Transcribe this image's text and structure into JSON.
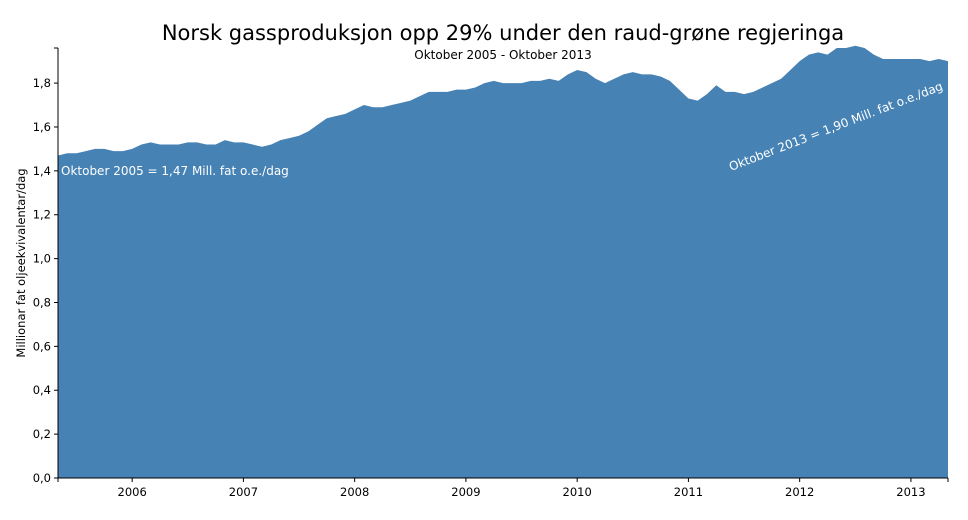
{
  "chart_data": {
    "type": "area",
    "title": "Norsk gassproduksjon opp 29% under den raud-grøne regjeringa",
    "subtitle": "Oktober 2005 - Oktober 2013",
    "xlabel": "",
    "ylabel": "Millionar fat oljeekvivalentar/dag",
    "xlim": [
      "2005-10",
      "2013-10"
    ],
    "ylim": [
      0,
      1.96
    ],
    "x_ticks": [
      "2006",
      "2007",
      "2008",
      "2009",
      "2010",
      "2011",
      "2012",
      "2013"
    ],
    "y_ticks": [
      "0,0",
      "0,2",
      "0,4",
      "0,6",
      "0,8",
      "1,0",
      "1,2",
      "1,4",
      "1,6",
      "1,8"
    ],
    "color": "#4682b4",
    "grid": false,
    "legend": "none",
    "series": [
      {
        "x": [
          "2005-10",
          "2005-11",
          "2005-12",
          "2006-01",
          "2006-02",
          "2006-03",
          "2006-04",
          "2006-05",
          "2006-06",
          "2006-07",
          "2006-08",
          "2006-09",
          "2006-10",
          "2006-11",
          "2006-12",
          "2007-01",
          "2007-02",
          "2007-03",
          "2007-04",
          "2007-05",
          "2007-06",
          "2007-07",
          "2007-08",
          "2007-09",
          "2007-10",
          "2007-11",
          "2007-12",
          "2008-01",
          "2008-02",
          "2008-03",
          "2008-04",
          "2008-05",
          "2008-06",
          "2008-07",
          "2008-08",
          "2008-09",
          "2008-10",
          "2008-11",
          "2008-12",
          "2009-01",
          "2009-02",
          "2009-03",
          "2009-04",
          "2009-05",
          "2009-06",
          "2009-07",
          "2009-08",
          "2009-09",
          "2009-10",
          "2009-11",
          "2009-12",
          "2010-01",
          "2010-02",
          "2010-03",
          "2010-04",
          "2010-05",
          "2010-06",
          "2010-07",
          "2010-08",
          "2010-09",
          "2010-10",
          "2010-11",
          "2010-12",
          "2011-01",
          "2011-02",
          "2011-03",
          "2011-04",
          "2011-05",
          "2011-06",
          "2011-07",
          "2011-08",
          "2011-09",
          "2011-10",
          "2011-11",
          "2011-12",
          "2012-01",
          "2012-02",
          "2012-03",
          "2012-04",
          "2012-05",
          "2012-06",
          "2012-07",
          "2012-08",
          "2012-09",
          "2012-10",
          "2012-11",
          "2012-12",
          "2013-01",
          "2013-02",
          "2013-03",
          "2013-04",
          "2013-05",
          "2013-06",
          "2013-07",
          "2013-08",
          "2013-09",
          "2013-10"
        ],
        "values": [
          1.47,
          1.48,
          1.48,
          1.49,
          1.5,
          1.5,
          1.49,
          1.49,
          1.5,
          1.52,
          1.53,
          1.52,
          1.52,
          1.52,
          1.53,
          1.53,
          1.52,
          1.52,
          1.54,
          1.53,
          1.53,
          1.52,
          1.51,
          1.52,
          1.54,
          1.55,
          1.56,
          1.58,
          1.61,
          1.64,
          1.65,
          1.66,
          1.68,
          1.7,
          1.69,
          1.69,
          1.7,
          1.71,
          1.72,
          1.74,
          1.76,
          1.76,
          1.76,
          1.77,
          1.77,
          1.78,
          1.8,
          1.81,
          1.8,
          1.8,
          1.8,
          1.81,
          1.81,
          1.82,
          1.81,
          1.84,
          1.86,
          1.85,
          1.82,
          1.8,
          1.82,
          1.84,
          1.85,
          1.84,
          1.84,
          1.83,
          1.81,
          1.77,
          1.73,
          1.72,
          1.75,
          1.79,
          1.76,
          1.76,
          1.75,
          1.76,
          1.78,
          1.8,
          1.82,
          1.86,
          1.9,
          1.93,
          1.94,
          1.93,
          1.96,
          1.96,
          1.97,
          1.96,
          1.93,
          1.91,
          1.91,
          1.91,
          1.91,
          1.91,
          1.9,
          1.91,
          1.9
        ]
      }
    ],
    "annotations": [
      {
        "text": "Oktober 2005 = 1,47 Mill. fat o.e./dag"
      },
      {
        "text": "Oktober 2013 = 1,90 Mill. fat o.e./dag"
      }
    ]
  }
}
